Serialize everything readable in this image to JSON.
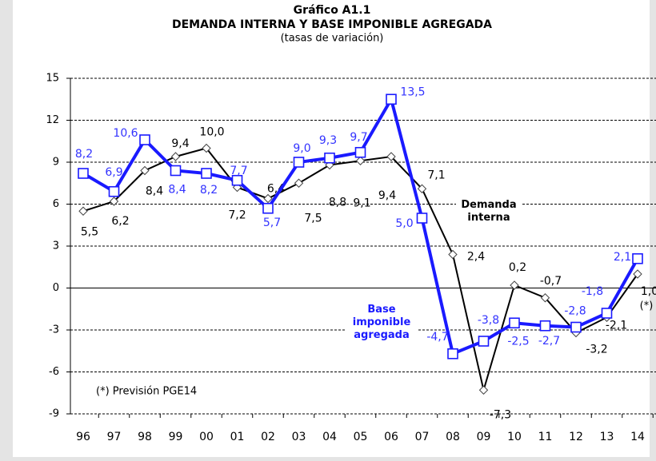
{
  "chart_data": {
    "type": "line",
    "title": "Gráfico A1.1",
    "subtitle": "DEMANDA INTERNA Y BASE IMPONIBLE AGREGADA",
    "note": "(tasas de variación)",
    "categories": [
      "96",
      "97",
      "98",
      "99",
      "00",
      "01",
      "02",
      "03",
      "04",
      "05",
      "06",
      "07",
      "08",
      "09",
      "10",
      "11",
      "12",
      "13",
      "14"
    ],
    "series": [
      {
        "name": "Base imponible agregada",
        "color": "#1a1aff",
        "values": [
          8.2,
          6.9,
          10.6,
          8.4,
          8.2,
          7.7,
          5.7,
          9.0,
          9.3,
          9.7,
          13.5,
          5.0,
          -4.7,
          -3.8,
          -2.5,
          -2.7,
          -2.8,
          -1.8,
          2.1
        ],
        "value_labels": [
          "8,2",
          "6,9",
          "10,6",
          "8,4",
          "8,2",
          "7,7",
          "5,7",
          "9,0",
          "9,3",
          "9,7",
          "13,5",
          "5,0",
          "-4,7",
          "-3,8",
          "-2,5",
          "-2,7",
          "-2,8",
          "-1,8",
          "2,1"
        ]
      },
      {
        "name": "Demanda interna",
        "color": "#000000",
        "values": [
          5.5,
          6.2,
          8.4,
          9.4,
          10.0,
          7.2,
          6.4,
          7.5,
          8.8,
          9.1,
          9.4,
          7.1,
          2.4,
          -7.3,
          0.2,
          -0.7,
          -3.2,
          -2.1,
          1.0
        ],
        "value_labels": [
          "5,5",
          "6,2",
          "8,4",
          "9,4",
          "10,0",
          "7,2",
          "6,4",
          "7,5",
          "8,8",
          "9,1",
          "9,4",
          "7,1",
          "2,4",
          "-7,3",
          "0,2",
          "-0,7",
          "-3,2",
          "-2,1",
          "1,0"
        ]
      }
    ],
    "ylim": [
      -9,
      15
    ],
    "yticks": [
      -9,
      -6,
      -3,
      0,
      3,
      6,
      9,
      12,
      15
    ],
    "grid": true,
    "last_point_mark": "(*)",
    "footnote": "(*) Previsión PGE14"
  }
}
